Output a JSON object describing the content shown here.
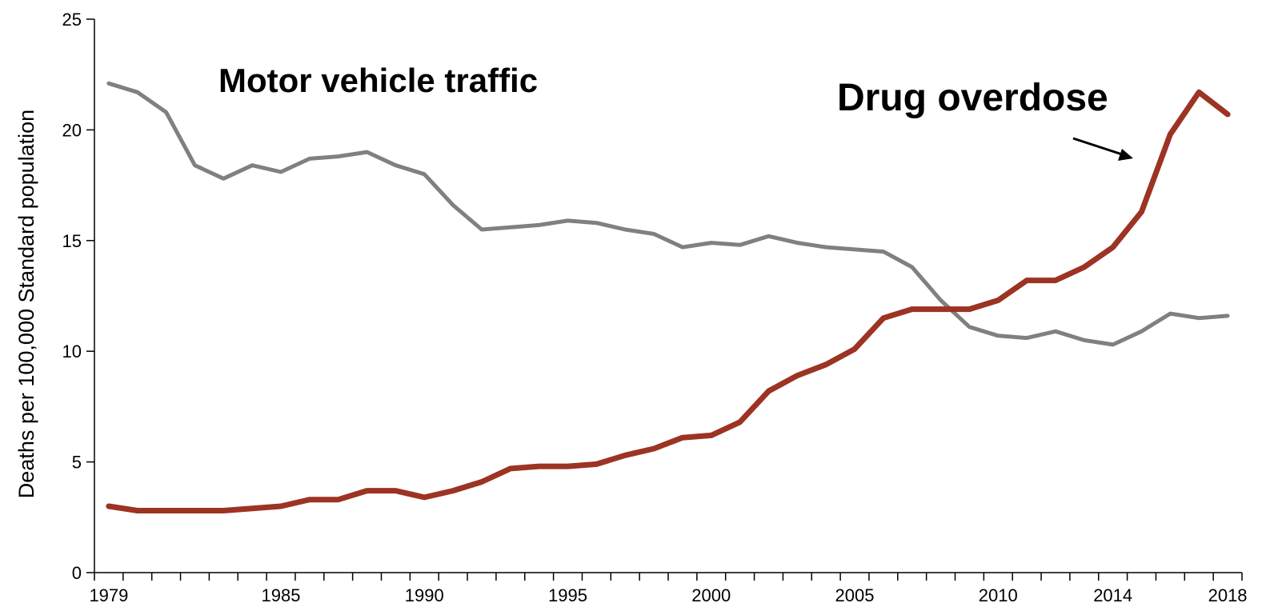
{
  "chart_data": {
    "type": "line",
    "ylabel": "Deaths per 100,000 Standard population",
    "xlabel": "",
    "title": "",
    "ylim": [
      0,
      25
    ],
    "yticks": [
      "0",
      "5",
      "10",
      "15",
      "20",
      "25"
    ],
    "xlim": [
      1979,
      2018
    ],
    "xtick_labels": [
      {
        "year": 1979,
        "label": "1979"
      },
      {
        "year": 1985,
        "label": "1985"
      },
      {
        "year": 1990,
        "label": "1990"
      },
      {
        "year": 1995,
        "label": "1995"
      },
      {
        "year": 2000,
        "label": "2000"
      },
      {
        "year": 2005,
        "label": "2005"
      },
      {
        "year": 2010,
        "label": "2010"
      },
      {
        "year": 2014,
        "label": "2014"
      },
      {
        "year": 2018,
        "label": "2018"
      }
    ],
    "x": [
      1979,
      1980,
      1981,
      1982,
      1983,
      1984,
      1985,
      1986,
      1987,
      1988,
      1989,
      1990,
      1991,
      1992,
      1993,
      1994,
      1995,
      1996,
      1997,
      1998,
      1999,
      2000,
      2001,
      2002,
      2003,
      2004,
      2005,
      2006,
      2007,
      2008,
      2009,
      2010,
      2011,
      2012,
      2013,
      2014,
      2015,
      2016,
      2017,
      2018
    ],
    "series": [
      {
        "name": "Motor vehicle traffic",
        "color": "#808080",
        "values": [
          22.1,
          21.7,
          20.8,
          18.4,
          17.8,
          18.4,
          18.1,
          18.7,
          18.8,
          19.0,
          18.4,
          18.0,
          16.6,
          15.5,
          15.6,
          15.7,
          15.9,
          15.8,
          15.5,
          15.3,
          14.7,
          14.9,
          14.8,
          15.2,
          14.9,
          14.7,
          14.6,
          14.5,
          13.8,
          12.3,
          11.1,
          10.7,
          10.6,
          10.9,
          10.5,
          10.3,
          10.9,
          11.7,
          11.5,
          11.6
        ]
      },
      {
        "name": "Drug overdose",
        "color": "#9c3323",
        "values": [
          3.0,
          2.8,
          2.8,
          2.8,
          2.8,
          2.9,
          3.0,
          3.3,
          3.3,
          3.7,
          3.7,
          3.4,
          3.7,
          4.1,
          4.7,
          4.8,
          4.8,
          4.9,
          5.3,
          5.6,
          6.1,
          6.2,
          6.8,
          8.2,
          8.9,
          9.4,
          10.1,
          11.5,
          11.9,
          11.9,
          11.9,
          12.3,
          13.2,
          13.2,
          13.8,
          14.7,
          16.3,
          19.8,
          21.7,
          20.7
        ]
      }
    ],
    "annotations": [
      {
        "text": "Motor vehicle traffic",
        "series": "Motor vehicle traffic"
      },
      {
        "text": "Drug overdose",
        "series": "Drug overdose",
        "arrow": true
      }
    ]
  }
}
